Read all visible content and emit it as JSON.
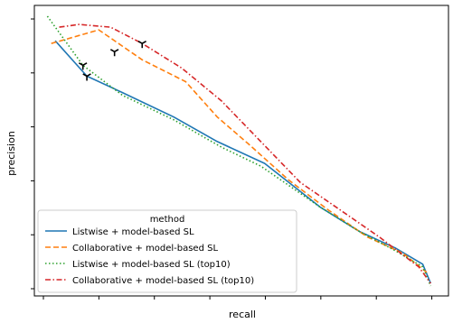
{
  "chart_data": {
    "type": "line",
    "xlabel": "recall",
    "ylabel": "precision",
    "xlim": [
      0,
      1
    ],
    "ylim": [
      0,
      1
    ],
    "x_tick_count": 8,
    "y_tick_count": 6,
    "grid": false,
    "legend": {
      "title": "method",
      "placement": "lower-left"
    },
    "series": [
      {
        "name": "Listwise + model-based SL",
        "color": "#1f77b4",
        "style": "solid",
        "x": [
          0.03,
          0.11,
          0.2,
          0.33,
          0.44,
          0.56,
          0.7,
          0.8,
          0.89,
          0.96,
          0.98
        ],
        "y": [
          0.91,
          0.78,
          0.72,
          0.63,
          0.54,
          0.46,
          0.3,
          0.21,
          0.15,
          0.09,
          0.02
        ],
        "markers": [
          {
            "x": 0.11,
            "y": 0.78
          }
        ]
      },
      {
        "name": "Collaborative + model-based SL",
        "color": "#ff7f0e",
        "style": "dashed",
        "x": [
          0.02,
          0.14,
          0.25,
          0.36,
          0.44,
          0.52,
          0.62,
          0.72,
          0.82,
          0.91,
          0.97
        ],
        "y": [
          0.9,
          0.95,
          0.84,
          0.76,
          0.63,
          0.53,
          0.4,
          0.29,
          0.19,
          0.13,
          0.06
        ],
        "markers": [
          {
            "x": 0.18,
            "y": 0.87
          }
        ]
      },
      {
        "name": "Listwise + model-based SL (top10)",
        "color": "#2ca02c",
        "style": "dotted",
        "x": [
          0.01,
          0.1,
          0.2,
          0.33,
          0.45,
          0.55,
          0.7,
          0.8,
          0.89,
          0.96,
          0.98
        ],
        "y": [
          1.0,
          0.82,
          0.71,
          0.62,
          0.52,
          0.45,
          0.3,
          0.21,
          0.14,
          0.08,
          0.01
        ],
        "markers": [
          {
            "x": 0.1,
            "y": 0.82
          }
        ]
      },
      {
        "name": "Collaborative + model-based SL (top10)",
        "color": "#d62728",
        "style": "dashdot",
        "x": [
          0.04,
          0.09,
          0.17,
          0.25,
          0.35,
          0.45,
          0.55,
          0.65,
          0.75,
          0.85,
          0.95,
          0.98
        ],
        "y": [
          0.96,
          0.97,
          0.96,
          0.9,
          0.81,
          0.69,
          0.54,
          0.39,
          0.29,
          0.19,
          0.08,
          0.02
        ],
        "markers": [
          {
            "x": 0.25,
            "y": 0.9
          }
        ]
      }
    ]
  }
}
